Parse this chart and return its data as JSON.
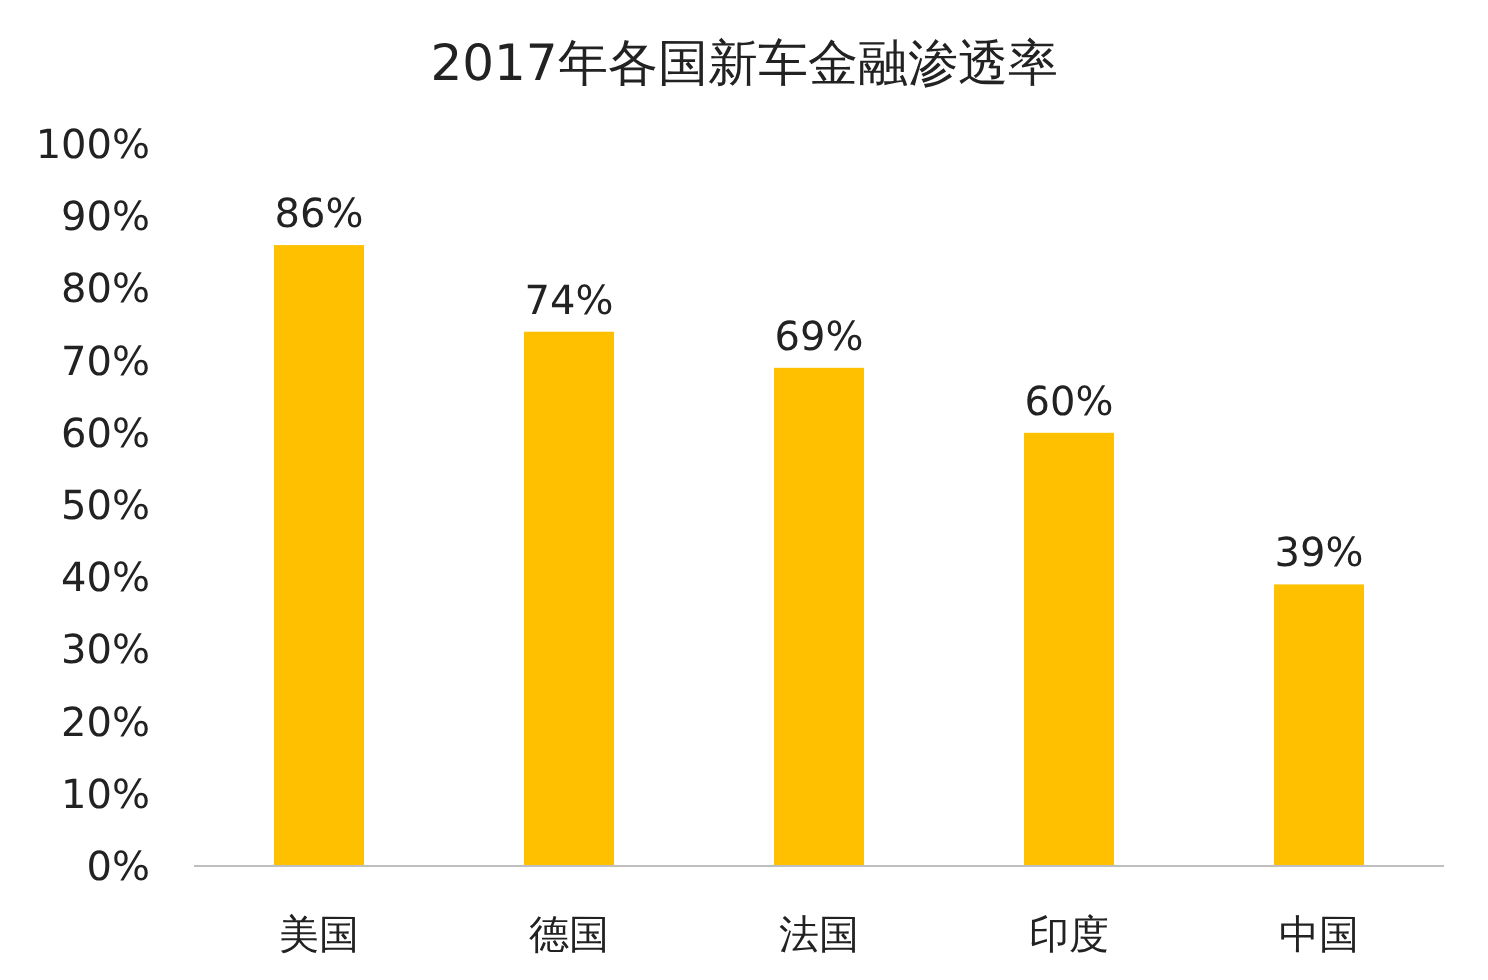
{
  "chart_data": {
    "type": "bar",
    "title": "2017年各国新车金融渗透率",
    "categories": [
      "美国",
      "德国",
      "法国",
      "印度",
      "中国"
    ],
    "values": [
      86,
      74,
      69,
      60,
      39
    ],
    "value_labels": [
      "86%",
      "74%",
      "69%",
      "60%",
      "39%"
    ],
    "color": "#ffc000",
    "ylim": [
      0,
      100
    ],
    "yticks": [
      {
        "value": 0,
        "label": "0%"
      },
      {
        "value": 10,
        "label": "10%"
      },
      {
        "value": 20,
        "label": "20%"
      },
      {
        "value": 30,
        "label": "30%"
      },
      {
        "value": 40,
        "label": "40%"
      },
      {
        "value": 50,
        "label": "50%"
      },
      {
        "value": 60,
        "label": "60%"
      },
      {
        "value": 70,
        "label": "70%"
      },
      {
        "value": 80,
        "label": "80%"
      },
      {
        "value": 90,
        "label": "90%"
      },
      {
        "value": 100,
        "label": "100%"
      }
    ],
    "grid": false
  }
}
